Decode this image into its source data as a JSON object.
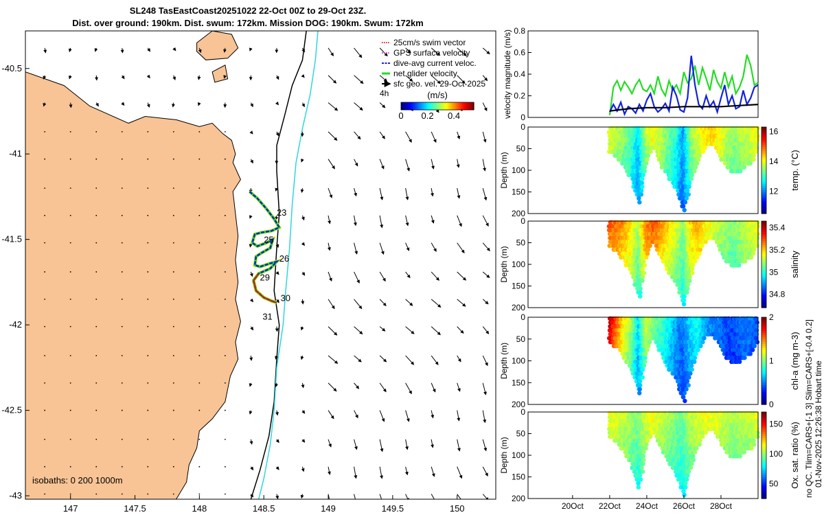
{
  "title": {
    "line1": "SL248 TasEastCoast20251022 22-Oct 00Z to 29-Oct 23Z.",
    "line2": "Dist. over ground: 190km. Dist. swum: 172km. Mission DOG: 190km. Swum: 172km"
  },
  "side_text": {
    "left": "no QC. Tlim=CARS+[-1 3] Slim=CARS+[-0.4 0.2]",
    "right": "01-Nov-2025 12:26:38 Hobart time"
  },
  "colors": {
    "land": "#f8c495",
    "coast": "#000000",
    "shelf_isobath": "#000000",
    "deep_isobath": "#2fd6d8",
    "glider_track_net": "#22e622",
    "glider_track_current": "#1122dd",
    "glider_track_sfc": "#cc2222",
    "yellow_track": "#f2e21a"
  },
  "chart_data": [
    {
      "type": "map",
      "xlim": [
        146.65,
        150.3
      ],
      "ylim": [
        -43.02,
        -40.28
      ],
      "x_ticks": [
        147,
        147.5,
        148,
        148.5,
        149,
        149.5,
        150
      ],
      "x_tick_labels": [
        "147",
        "147.5",
        "148",
        "148.5",
        "149",
        "149.5",
        "150"
      ],
      "y_ticks": [
        -40.5,
        -41,
        -41.5,
        -42,
        -42.5,
        -43
      ],
      "y_tick_labels": [
        "-40.5",
        "-41",
        "-41.5",
        "-42",
        "-42.5",
        "-43"
      ],
      "isobath_label": "isobaths: 0   200  1000m",
      "legend": [
        {
          "label": "25cm/s swim vector",
          "color": "#dd2222",
          "style": "dotted"
        },
        {
          "label": "GPS surface velocity",
          "color": "#cc33cc",
          "style": "dotted"
        },
        {
          "label": "dive-avg current veloc.",
          "color": "#1122dd",
          "style": "dashed"
        },
        {
          "label": "net glider velocity",
          "color": "#22dd22",
          "style": "solid"
        },
        {
          "label": "sfc geo. vel. 29-Oct-2025",
          "color": "#000000",
          "style": "arrow"
        }
      ],
      "vector_note": "4h",
      "colorbar": {
        "label": "(m/s)",
        "ticks": [
          0,
          0.2,
          0.4
        ],
        "tick_labels": [
          "0",
          "0.2",
          "0.4"
        ],
        "range": [
          0,
          0.55
        ]
      },
      "track_day_labels": [
        {
          "text": "23",
          "lon": 148.6,
          "lat": -41.36
        },
        {
          "text": "25",
          "lon": 148.5,
          "lat": -41.52
        },
        {
          "text": "26",
          "lon": 148.62,
          "lat": -41.63
        },
        {
          "text": "29",
          "lon": 148.47,
          "lat": -41.74
        },
        {
          "text": "30",
          "lon": 148.63,
          "lat": -41.86
        },
        {
          "text": "31",
          "lon": 148.49,
          "lat": -41.97
        }
      ],
      "coast_lon_lat": [
        [
          146.65,
          -40.52
        ],
        [
          146.95,
          -40.6
        ],
        [
          147.15,
          -40.72
        ],
        [
          147.45,
          -40.82
        ],
        [
          147.58,
          -40.78
        ],
        [
          147.82,
          -40.8
        ],
        [
          148.0,
          -40.84
        ],
        [
          148.1,
          -40.82
        ],
        [
          148.18,
          -40.88
        ],
        [
          148.25,
          -40.92
        ],
        [
          148.28,
          -41.0
        ],
        [
          148.26,
          -41.05
        ],
        [
          148.32,
          -41.15
        ],
        [
          148.26,
          -41.22
        ],
        [
          148.28,
          -41.35
        ],
        [
          148.3,
          -41.48
        ],
        [
          148.28,
          -41.62
        ],
        [
          148.3,
          -41.75
        ],
        [
          148.28,
          -41.85
        ],
        [
          148.32,
          -41.98
        ],
        [
          148.28,
          -42.1
        ],
        [
          148.3,
          -42.2
        ],
        [
          148.24,
          -42.3
        ],
        [
          148.2,
          -42.45
        ],
        [
          148.1,
          -42.55
        ],
        [
          148.0,
          -42.62
        ],
        [
          147.98,
          -42.72
        ],
        [
          147.92,
          -42.82
        ],
        [
          147.9,
          -42.92
        ],
        [
          147.82,
          -43.02
        ],
        [
          146.65,
          -43.02
        ]
      ],
      "islands_lon_lat": [
        [
          [
            147.98,
            -40.35
          ],
          [
            148.1,
            -40.28
          ],
          [
            148.25,
            -40.3
          ],
          [
            148.3,
            -40.38
          ],
          [
            148.22,
            -40.44
          ],
          [
            148.05,
            -40.45
          ],
          [
            147.98,
            -40.4
          ]
        ],
        [
          [
            148.1,
            -40.52
          ],
          [
            148.2,
            -40.48
          ],
          [
            148.22,
            -40.56
          ],
          [
            148.12,
            -40.58
          ]
        ]
      ],
      "isobath_200_lon_lat": [
        [
          148.83,
          -40.28
        ],
        [
          148.8,
          -40.45
        ],
        [
          148.72,
          -40.6
        ],
        [
          148.66,
          -40.78
        ],
        [
          148.6,
          -40.95
        ],
        [
          148.6,
          -41.1
        ],
        [
          148.62,
          -41.35
        ],
        [
          148.6,
          -41.55
        ],
        [
          148.58,
          -41.8
        ],
        [
          148.62,
          -42.0
        ],
        [
          148.6,
          -42.2
        ],
        [
          148.58,
          -42.45
        ],
        [
          148.54,
          -42.65
        ],
        [
          148.47,
          -42.85
        ],
        [
          148.4,
          -43.02
        ]
      ],
      "isobath_1000_lon_lat": [
        [
          148.92,
          -40.28
        ],
        [
          148.9,
          -40.45
        ],
        [
          148.86,
          -40.65
        ],
        [
          148.8,
          -40.85
        ],
        [
          148.75,
          -41.05
        ],
        [
          148.72,
          -41.3
        ],
        [
          148.7,
          -41.55
        ],
        [
          148.67,
          -41.8
        ],
        [
          148.65,
          -42.0
        ],
        [
          148.6,
          -42.25
        ],
        [
          148.58,
          -42.5
        ],
        [
          148.55,
          -42.7
        ],
        [
          148.5,
          -42.9
        ],
        [
          148.46,
          -43.02
        ]
      ],
      "track_lon_lat": [
        [
          148.39,
          -41.22
        ],
        [
          148.45,
          -41.26
        ],
        [
          148.52,
          -41.32
        ],
        [
          148.58,
          -41.38
        ],
        [
          148.62,
          -41.43
        ],
        [
          148.56,
          -41.45
        ],
        [
          148.48,
          -41.46
        ],
        [
          148.43,
          -41.47
        ],
        [
          148.41,
          -41.52
        ],
        [
          148.45,
          -41.54
        ],
        [
          148.52,
          -41.52
        ],
        [
          148.57,
          -41.5
        ],
        [
          148.55,
          -41.55
        ],
        [
          148.48,
          -41.58
        ],
        [
          148.44,
          -41.6
        ],
        [
          148.43,
          -41.65
        ],
        [
          148.47,
          -41.66
        ],
        [
          148.55,
          -41.64
        ],
        [
          148.6,
          -41.63
        ],
        [
          148.55,
          -41.67
        ],
        [
          148.46,
          -41.7
        ],
        [
          148.42,
          -41.74
        ],
        [
          148.44,
          -41.8
        ],
        [
          148.5,
          -41.84
        ],
        [
          148.56,
          -41.86
        ],
        [
          148.6,
          -41.87
        ]
      ],
      "vector_grid": {
        "lon": [
          146.8,
          147.0,
          147.2,
          147.4,
          147.6,
          147.8,
          148.0,
          148.2,
          148.4,
          148.6,
          148.8,
          149.0,
          149.2,
          149.4,
          149.6,
          149.8,
          150.0,
          150.2
        ],
        "lat": [
          -40.38,
          -40.54,
          -40.7,
          -40.87,
          -41.03,
          -41.2,
          -41.36,
          -41.52,
          -41.69,
          -41.85,
          -42.01,
          -42.18,
          -42.34,
          -42.5,
          -42.67,
          -42.83,
          -42.99
        ]
      }
    },
    {
      "type": "line",
      "ylabel": "velocity magnitude (m/s)",
      "ylim": [
        0,
        0.8
      ],
      "y_ticks": [
        0,
        0.2,
        0.4,
        0.6,
        0.8
      ],
      "y_tick_labels": [
        "0",
        "0.2",
        "0.4",
        "0.6",
        "0.8"
      ],
      "xlim": [
        17.6,
        30.0
      ],
      "series": [
        {
          "name": "net glider velocity",
          "color": "#22dd22",
          "x": [
            22.0,
            22.2,
            22.4,
            22.6,
            22.8,
            23.0,
            23.2,
            23.4,
            23.6,
            23.8,
            24.0,
            24.2,
            24.4,
            24.6,
            24.8,
            25.0,
            25.2,
            25.4,
            25.6,
            25.8,
            26.0,
            26.2,
            26.4,
            26.6,
            26.8,
            27.0,
            27.2,
            27.4,
            27.6,
            27.8,
            28.0,
            28.2,
            28.4,
            28.6,
            28.8,
            29.0,
            29.2,
            29.4,
            29.6,
            29.8,
            30.0
          ],
          "values": [
            0.02,
            0.28,
            0.34,
            0.25,
            0.33,
            0.28,
            0.22,
            0.3,
            0.35,
            0.26,
            0.24,
            0.3,
            0.22,
            0.38,
            0.26,
            0.2,
            0.34,
            0.25,
            0.3,
            0.22,
            0.42,
            0.32,
            0.36,
            0.48,
            0.3,
            0.46,
            0.36,
            0.25,
            0.44,
            0.33,
            0.27,
            0.42,
            0.28,
            0.38,
            0.22,
            0.28,
            0.38,
            0.58,
            0.48,
            0.3,
            0.32
          ]
        },
        {
          "name": "dive-avg current veloc.",
          "color": "#1122dd",
          "x": [
            22.0,
            22.2,
            22.4,
            22.6,
            22.8,
            23.0,
            23.2,
            23.4,
            23.6,
            23.8,
            24.0,
            24.2,
            24.4,
            24.6,
            24.8,
            25.0,
            25.2,
            25.4,
            25.6,
            25.8,
            26.0,
            26.2,
            26.4,
            26.6,
            26.8,
            27.0,
            27.2,
            27.4,
            27.6,
            27.8,
            28.0,
            28.2,
            28.4,
            28.6,
            28.8,
            29.0,
            29.2,
            29.4,
            29.6,
            29.8,
            30.0
          ],
          "values": [
            0.05,
            0.12,
            0.06,
            0.14,
            0.03,
            0.1,
            0.08,
            0.04,
            0.12,
            0.06,
            0.16,
            0.22,
            0.1,
            0.05,
            0.08,
            0.13,
            0.06,
            0.28,
            0.2,
            0.07,
            0.05,
            0.18,
            0.57,
            0.3,
            0.12,
            0.08,
            0.2,
            0.1,
            0.15,
            0.05,
            0.18,
            0.3,
            0.12,
            0.2,
            0.08,
            0.1,
            0.25,
            0.12,
            0.18,
            0.28,
            0.3
          ]
        },
        {
          "name": "sfc geo. vel.",
          "color": "#000000",
          "x": [
            22.0,
            23.0,
            24.0,
            25.0,
            26.0,
            27.0,
            28.0,
            29.0,
            30.0
          ],
          "values": [
            0.06,
            0.08,
            0.09,
            0.09,
            0.1,
            0.1,
            0.1,
            0.11,
            0.12
          ]
        }
      ]
    },
    {
      "type": "scatter-section",
      "ylabel": "Depth (m)",
      "cbar_label": "temp. (°C)",
      "ylim": [
        200,
        0
      ],
      "y_ticks": [
        0,
        50,
        100,
        150,
        200
      ],
      "y_tick_labels": [
        "0",
        "50",
        "100",
        "150",
        "200"
      ],
      "cbar_range": [
        10.5,
        16.3
      ],
      "cbar_ticks": [
        12,
        14,
        16
      ],
      "cbar_tick_labels": [
        "12",
        "14",
        "16"
      ],
      "profile_x": [
        22.0,
        22.4,
        22.8,
        23.2,
        23.6,
        24.0,
        24.4,
        24.8,
        25.2,
        25.6,
        26.0,
        26.4,
        26.8,
        27.2,
        27.6,
        28.0,
        28.4,
        28.8,
        29.2,
        29.6,
        30.0
      ],
      "profile_depth": [
        60,
        70,
        95,
        120,
        180,
        75,
        45,
        90,
        120,
        145,
        195,
        120,
        75,
        45,
        40,
        70,
        100,
        110,
        95,
        85,
        55
      ],
      "profile_value": [
        14.0,
        13.8,
        13.6,
        13.2,
        12.5,
        13.8,
        14.2,
        13.9,
        13.4,
        13.0,
        12.2,
        13.5,
        14.0,
        14.3,
        14.5,
        14.2,
        13.8,
        13.6,
        13.8,
        14.0,
        14.1
      ]
    },
    {
      "type": "scatter-section",
      "ylabel": "Depth (m)",
      "cbar_label": "salinity",
      "ylim": [
        200,
        0
      ],
      "y_ticks": [
        0,
        50,
        100,
        150,
        200
      ],
      "y_tick_labels": [
        "0",
        "50",
        "100",
        "150",
        "200"
      ],
      "cbar_range": [
        34.68,
        35.46
      ],
      "cbar_ticks": [
        34.8,
        35,
        35.2,
        35.4
      ],
      "cbar_tick_labels": [
        "34.8",
        "35",
        "35.2",
        "35.4"
      ],
      "profile_x": [
        22.0,
        22.4,
        22.8,
        23.2,
        23.6,
        24.0,
        24.4,
        24.8,
        25.2,
        25.6,
        26.0,
        26.4,
        26.8,
        27.2,
        27.6,
        28.0,
        28.4,
        28.8,
        29.2,
        29.6,
        30.0
      ],
      "profile_depth": [
        60,
        70,
        95,
        120,
        180,
        75,
        45,
        90,
        120,
        145,
        195,
        120,
        75,
        45,
        40,
        70,
        100,
        110,
        95,
        85,
        55
      ],
      "profile_value": [
        35.3,
        35.28,
        35.25,
        35.2,
        35.1,
        35.27,
        35.3,
        35.26,
        35.2,
        35.15,
        35.08,
        35.2,
        35.24,
        35.18,
        35.15,
        35.12,
        35.1,
        35.08,
        35.12,
        35.14,
        35.16
      ]
    },
    {
      "type": "scatter-section",
      "ylabel": "Depth (m)",
      "cbar_label": "chl-a (mg m-3)",
      "ylim": [
        200,
        0
      ],
      "y_ticks": [
        0,
        50,
        100,
        150,
        200
      ],
      "y_tick_labels": [
        "0",
        "50",
        "100",
        "150",
        "200"
      ],
      "cbar_range": [
        0,
        2
      ],
      "cbar_ticks": [
        0,
        1,
        2
      ],
      "cbar_tick_labels": [
        "0",
        "1",
        "2"
      ],
      "profile_x": [
        22.0,
        22.4,
        22.8,
        23.2,
        23.6,
        24.0,
        24.4,
        24.8,
        25.2,
        25.6,
        26.0,
        26.4,
        26.8,
        27.2,
        27.6,
        28.0,
        28.4,
        28.8,
        29.2,
        29.6,
        30.0
      ],
      "profile_depth": [
        60,
        70,
        95,
        120,
        180,
        75,
        45,
        90,
        120,
        145,
        195,
        120,
        75,
        45,
        40,
        70,
        100,
        110,
        95,
        85,
        55
      ],
      "profile_value": [
        1.9,
        1.6,
        1.3,
        1.1,
        0.7,
        1.2,
        1.0,
        0.9,
        0.8,
        0.6,
        0.5,
        0.7,
        0.8,
        0.6,
        0.5,
        0.5,
        0.4,
        0.4,
        0.5,
        0.5,
        0.4
      ]
    },
    {
      "type": "scatter-section",
      "ylabel": "Depth (m)",
      "cbar_label": "Ox. sat. ratio (%)",
      "ylim": [
        200,
        0
      ],
      "y_ticks": [
        0,
        50,
        100,
        150,
        200
      ],
      "y_tick_labels": [
        "0",
        "50",
        "100",
        "150",
        "200"
      ],
      "cbar_range": [
        25,
        170
      ],
      "cbar_ticks": [
        50,
        100,
        150
      ],
      "cbar_tick_labels": [
        "50",
        "100",
        "150"
      ],
      "x_ticks": [
        20,
        22,
        24,
        26,
        28
      ],
      "x_tick_labels": [
        "20Oct",
        "22Oct",
        "24Oct",
        "26Oct",
        "28Oct"
      ],
      "profile_x": [
        22.0,
        22.4,
        22.8,
        23.2,
        23.6,
        24.0,
        24.4,
        24.8,
        25.2,
        25.6,
        26.0,
        26.4,
        26.8,
        27.2,
        27.6,
        28.0,
        28.4,
        28.8,
        29.2,
        29.6,
        30.0
      ],
      "profile_depth": [
        60,
        70,
        95,
        120,
        180,
        75,
        45,
        90,
        120,
        145,
        195,
        120,
        75,
        45,
        40,
        70,
        100,
        110,
        95,
        85,
        55
      ],
      "profile_value": [
        115,
        112,
        110,
        105,
        98,
        112,
        115,
        110,
        106,
        100,
        96,
        108,
        112,
        114,
        115,
        112,
        108,
        106,
        108,
        110,
        112
      ]
    }
  ]
}
